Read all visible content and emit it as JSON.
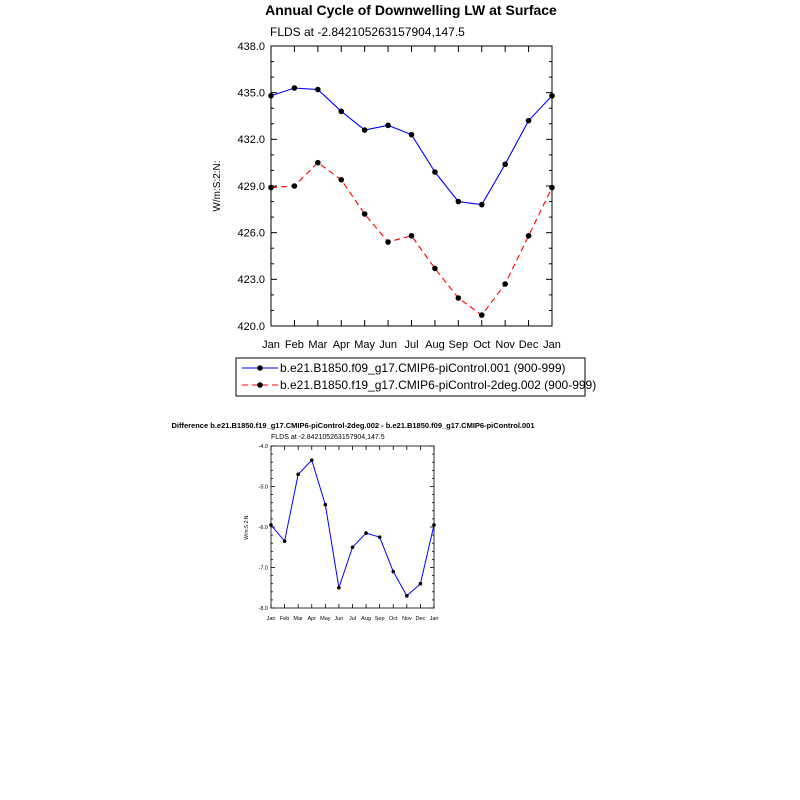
{
  "chart_data": [
    {
      "type": "line",
      "title": "Annual Cycle of Downwelling LW at Surface",
      "subtitle": "FLDS at -2.842105263157904,147.5",
      "ylabel": "W/m:S:2:N:",
      "categories": [
        "Jan",
        "Feb",
        "Mar",
        "Apr",
        "May",
        "Jun",
        "Jul",
        "Aug",
        "Sep",
        "Oct",
        "Nov",
        "Dec",
        "Jan"
      ],
      "ylim": [
        420.0,
        438.0
      ],
      "yticks": [
        "420.0",
        "423.0",
        "426.0",
        "429.0",
        "432.0",
        "435.0",
        "438.0"
      ],
      "series": [
        {
          "name": "b.e21.B1850.f09_g17.CMIP6-piControl.001 (900-999)",
          "color": "#0000ff",
          "dash": "solid",
          "values": [
            434.8,
            435.3,
            435.2,
            433.8,
            432.6,
            432.9,
            432.3,
            429.9,
            428.0,
            427.8,
            430.4,
            433.2,
            434.8
          ]
        },
        {
          "name": "b.e21.B1850.f19_g17.CMIP6-piControl-2deg.002 (900-999)",
          "color": "#ff0000",
          "dash": "dashed",
          "values": [
            428.9,
            429.0,
            430.5,
            429.4,
            427.2,
            425.4,
            425.8,
            423.7,
            421.8,
            420.7,
            422.7,
            425.8,
            428.9
          ]
        }
      ],
      "legend": "bottom"
    },
    {
      "type": "line",
      "title": "Difference b.e21.B1850.f19_g17.CMIP6-piControl-2deg.002 - b.e21.B1850.f09_g17.CMIP6-piControl.001",
      "subtitle": "FLDS at -2.842105263157904,147.5",
      "ylabel": "W/m:S:2:N:",
      "categories": [
        "Jan",
        "Feb",
        "Mar",
        "Apr",
        "May",
        "Jun",
        "Jul",
        "Aug",
        "Sep",
        "Oct",
        "Nov",
        "Dec",
        "Jan"
      ],
      "ylim": [
        -8.0,
        -4.0
      ],
      "yticks": [
        "-8.0",
        "-7.0",
        "-6.0",
        "-5.0",
        "-4.0"
      ],
      "series": [
        {
          "color": "#0000ff",
          "values": [
            -5.95,
            -6.35,
            -4.7,
            -4.35,
            -5.45,
            -7.5,
            -6.5,
            -6.15,
            -6.25,
            -7.1,
            -7.7,
            -7.4,
            -5.95
          ]
        }
      ]
    }
  ]
}
